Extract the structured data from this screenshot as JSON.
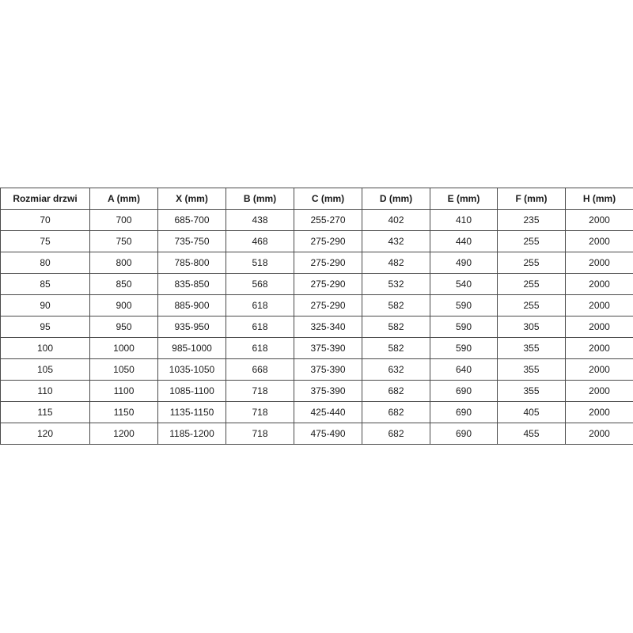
{
  "headers": [
    "Rozmiar drzwi",
    "A (mm)",
    "X (mm)",
    "B (mm)",
    "C (mm)",
    "D (mm)",
    "E (mm)",
    "F (mm)",
    "H (mm)"
  ],
  "rows": [
    [
      "70",
      "700",
      "685-700",
      "438",
      "255-270",
      "402",
      "410",
      "235",
      "2000"
    ],
    [
      "75",
      "750",
      "735-750",
      "468",
      "275-290",
      "432",
      "440",
      "255",
      "2000"
    ],
    [
      "80",
      "800",
      "785-800",
      "518",
      "275-290",
      "482",
      "490",
      "255",
      "2000"
    ],
    [
      "85",
      "850",
      "835-850",
      "568",
      "275-290",
      "532",
      "540",
      "255",
      "2000"
    ],
    [
      "90",
      "900",
      "885-900",
      "618",
      "275-290",
      "582",
      "590",
      "255",
      "2000"
    ],
    [
      "95",
      "950",
      "935-950",
      "618",
      "325-340",
      "582",
      "590",
      "305",
      "2000"
    ],
    [
      "100",
      "1000",
      "985-1000",
      "618",
      "375-390",
      "582",
      "590",
      "355",
      "2000"
    ],
    [
      "105",
      "1050",
      "1035-1050",
      "668",
      "375-390",
      "632",
      "640",
      "355",
      "2000"
    ],
    [
      "110",
      "1100",
      "1085-1100",
      "718",
      "375-390",
      "682",
      "690",
      "355",
      "2000"
    ],
    [
      "115",
      "1150",
      "1135-1150",
      "718",
      "425-440",
      "682",
      "690",
      "405",
      "2000"
    ],
    [
      "120",
      "1200",
      "1185-1200",
      "718",
      "475-490",
      "682",
      "690",
      "455",
      "2000"
    ]
  ]
}
